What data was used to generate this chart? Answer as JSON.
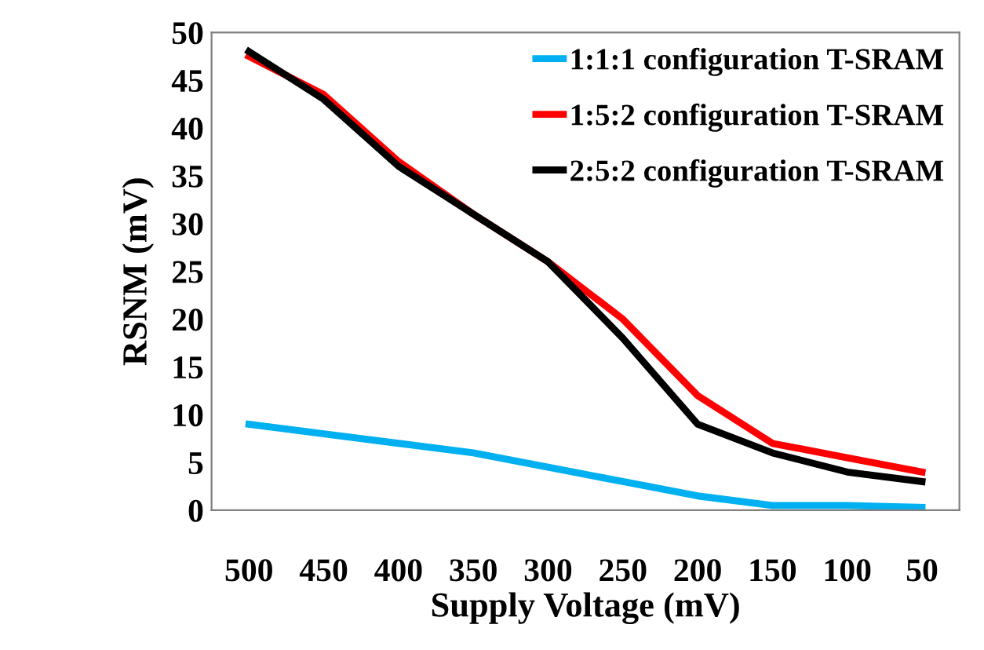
{
  "chart_data": {
    "type": "line",
    "xlabel": "Supply Voltage (mV)",
    "ylabel": "RSNM (mV)",
    "categories": [
      "500",
      "450",
      "400",
      "350",
      "300",
      "250",
      "200",
      "150",
      "100",
      "50"
    ],
    "series": [
      {
        "name": "1:1:1 configuration T-SRAM",
        "color": "#00b0f0",
        "values": [
          9,
          8,
          7,
          6,
          4.5,
          3,
          1.5,
          0.5,
          0.5,
          0.3
        ]
      },
      {
        "name": "1:5:2 configuration T-SRAM",
        "color": "#ff0000",
        "values": [
          47.5,
          43.5,
          36.5,
          31,
          26,
          20,
          12,
          7,
          5.5,
          4
        ]
      },
      {
        "name": "2:5:2 configuration T-SRAM",
        "color": "#000000",
        "values": [
          48,
          43,
          36,
          31,
          26,
          18,
          9,
          6,
          4,
          3
        ]
      }
    ],
    "ylim": [
      0,
      50
    ],
    "yticks": [
      0,
      5,
      10,
      15,
      20,
      25,
      30,
      35,
      40,
      45,
      50
    ],
    "grid": false,
    "legend": "top right",
    "marker": "none",
    "line_style": "solid"
  }
}
